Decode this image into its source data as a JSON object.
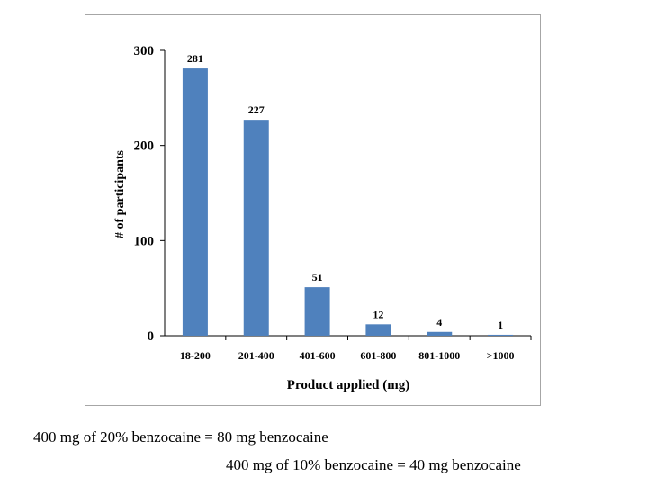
{
  "chart_data": {
    "type": "bar",
    "categories": [
      "18-200",
      "201-400",
      "401-600",
      "601-800",
      "801-1000",
      ">1000"
    ],
    "values": [
      281,
      227,
      51,
      12,
      4,
      1
    ],
    "data_labels": [
      "281",
      "227",
      "51",
      "12",
      "4",
      "1"
    ],
    "xlabel": "Product applied (mg)",
    "ylabel": "# of  participants",
    "ylim": [
      0,
      300
    ],
    "yticks": [
      0,
      100,
      200,
      300
    ],
    "ytick_labels": [
      "0",
      "100",
      "200",
      "300"
    ],
    "grid": false,
    "legend": "none",
    "bar_color": "#4f81bd"
  },
  "notes": {
    "line1": "400 mg of 20% benzocaine = 80 mg benzocaine",
    "line2": "400 mg of 10% benzocaine = 40 mg benzocaine"
  }
}
